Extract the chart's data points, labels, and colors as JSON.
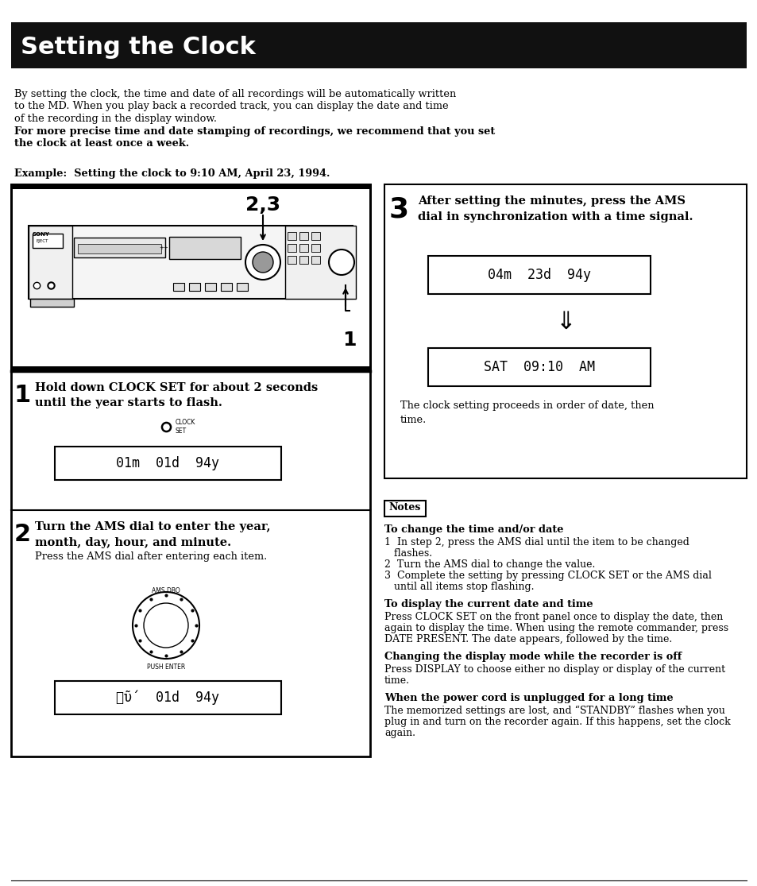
{
  "title": "Setting the Clock",
  "title_bg": "#111111",
  "title_color": "#ffffff",
  "page_bg": "#ffffff",
  "intro_line1": "By setting the clock, the time and date of all recordings will be automatically written",
  "intro_line2": "to the MD. When you play back a recorded track, you can display the date and time",
  "intro_line3": "of the recording in the display window.",
  "intro_line4": "For more precise time and date stamping of recordings, we recommend that you set",
  "intro_line5": "the clock at least once a week.",
  "example_text": "Example:  Setting the clock to 9:10 AM, April 23, 1994.",
  "step1_num": "1",
  "step1_line1": "Hold down CLOCK SET for about 2 seconds",
  "step1_line2": "until the year starts to flash.",
  "step1_display": "01m  01d  94y",
  "step2_num": "2",
  "step2_line1": "Turn the AMS dial to enter the year,",
  "step2_line2": "month, day, hour, and minute.",
  "step2_sub": "Press the AMS dial after entering each item.",
  "step2_display": "㑊ῦṕ  01d  94y",
  "step3_num": "3",
  "step3_line1": "After setting the minutes, press the AMS",
  "step3_line2": "dial in synchronization with a time signal.",
  "step3_display1": "04m  23d  94y",
  "step3_display2": "SAT  09:10  AM",
  "step3_note": "The clock setting proceeds in order of date, then\ntime.",
  "notes_box_text": "Notes",
  "n1_title": "To change the time and/or date",
  "n1_1": "1  In step 2, press the AMS dial until the item to be changed",
  "n1_1b": "   flashes.",
  "n1_2": "2  Turn the AMS dial to change the value.",
  "n1_3": "3  Complete the setting by pressing CLOCK SET or the AMS dial",
  "n1_3b": "   until all items stop flashing.",
  "n2_title": "To display the current date and time",
  "n2_text1": "Press CLOCK SET on the front panel once to display the date, then",
  "n2_text2": "again to display the time. When using the remote commander, press",
  "n2_text3": "DATE PRESENT. The date appears, followed by the time.",
  "n3_title": "Changing the display mode while the recorder is off",
  "n3_text1": "Press DISPLAY to choose either no display or display of the current",
  "n3_text2": "time.",
  "n4_title": "When the power cord is unplugged for a long time",
  "n4_text1": "The memorized settings are lost, and “STANDBY” flashes when you",
  "n4_text2": "plug in and turn on the recorder again. If this happens, set the clock",
  "n4_text3": "again.",
  "label_23": "2,3",
  "label_1": "1",
  "clock_label": "CLOCK\nSET",
  "ams_label_top": "AMS DBO",
  "ams_label_bot": "PUSH ENTER"
}
